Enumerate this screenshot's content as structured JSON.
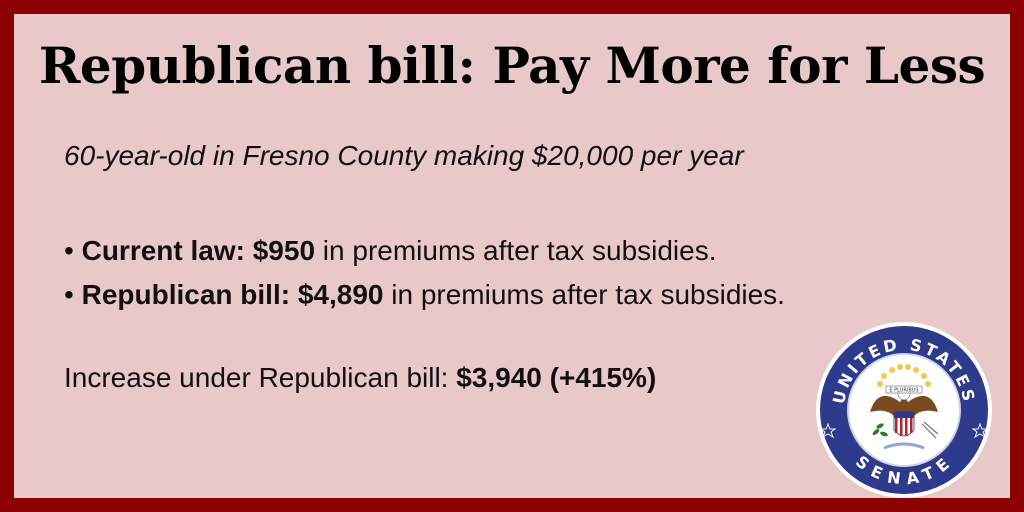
{
  "title": "Republican bill: Pay More for Less",
  "subtitle": "60-year-old in Fresno County making $20,000 per year",
  "bullets": [
    {
      "prefix": "• ",
      "bold": "Current law: $950",
      "rest": " in premiums after tax subsidies."
    },
    {
      "prefix": "• ",
      "bold": "Republican bill: $4,890",
      "rest": " in premiums after tax subsidies."
    }
  ],
  "increase": {
    "label": "Increase under Republican bill: ",
    "value": "$3,940 (+415%)"
  },
  "seal": {
    "top_text": "UNITED STATES",
    "bottom_text": "SENATE",
    "motto": "E PLURIBUS",
    "colors": {
      "ring": "#2e3a8c",
      "inner": "#ffffff",
      "star": "#f2c94c"
    }
  },
  "colors": {
    "border": "#8b0000",
    "background": "#e8c8c9"
  }
}
